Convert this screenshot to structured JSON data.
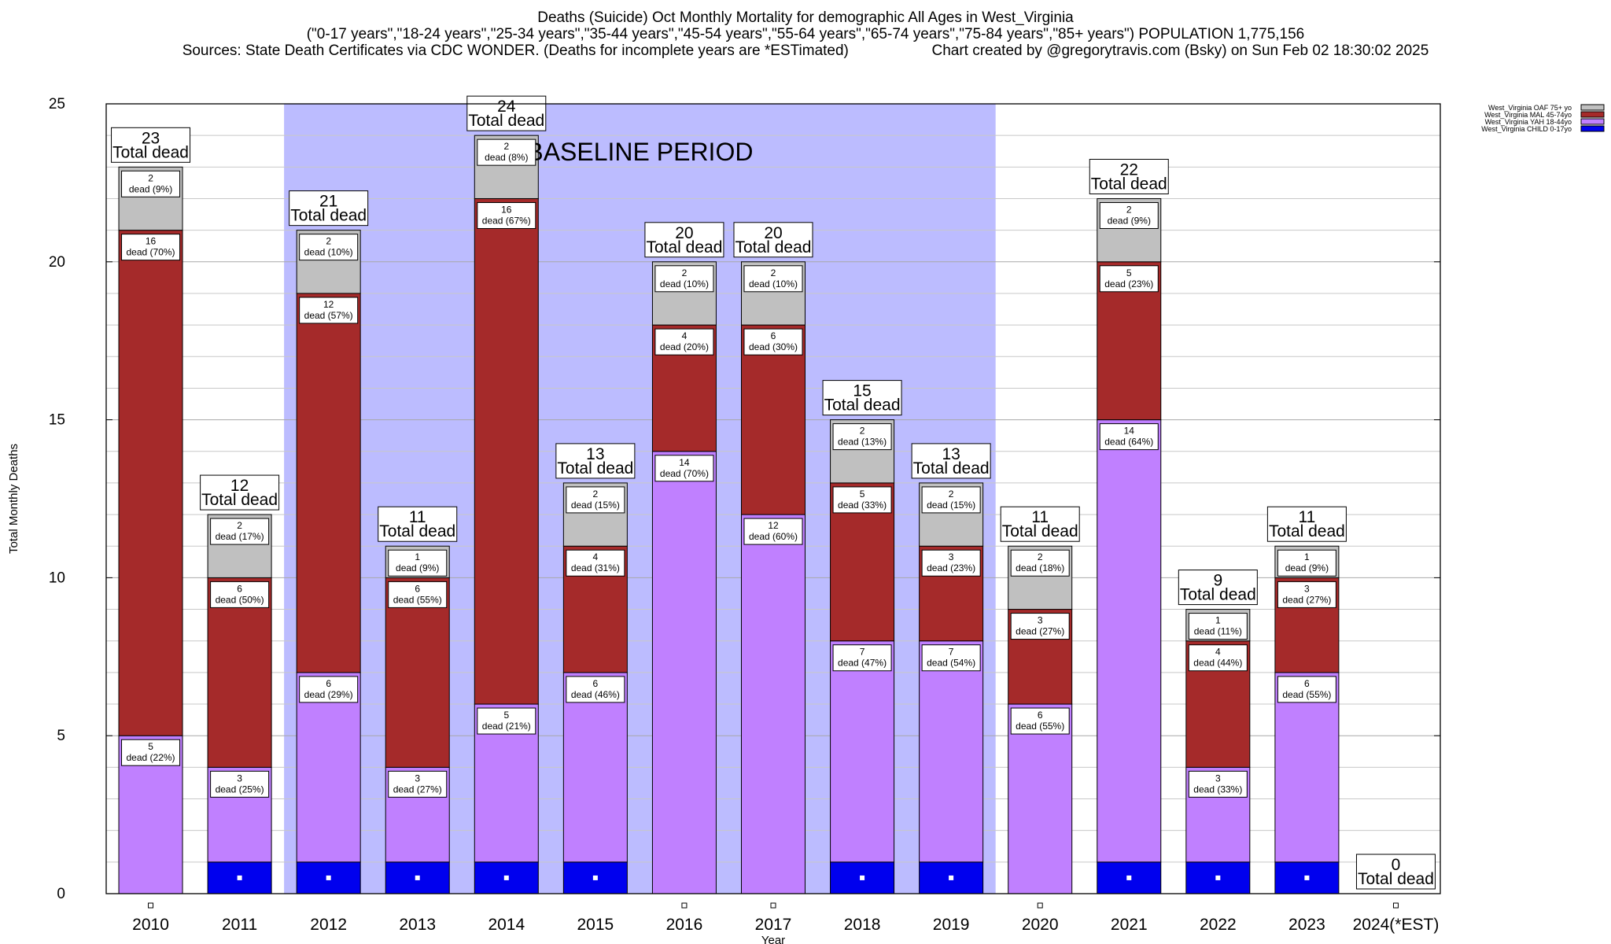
{
  "header": {
    "title": "Deaths (Suicide) Oct Monthly Mortality for demographic All Ages in West_Virginia",
    "age_groups": "(\"0-17 years\",\"18-24 years\",\"25-34 years\",\"35-44 years\",\"45-54 years\",\"55-64 years\",\"65-74 years\",\"75-84 years\",\"85+ years\") POPULATION 1,775,156",
    "sources": "Sources: State Death Certificates via CDC WONDER. (Deaths for incomplete years are *ESTimated)",
    "credit": "Chart created by @gregorytravis.com (Bsky) on Sun Feb 02 18:30:02 2025"
  },
  "chart_data": {
    "type": "bar",
    "stacked": true,
    "xlabel": "Year",
    "ylabel": "Total Monthly Deaths",
    "ylim": [
      0,
      25
    ],
    "yticks": [
      0,
      5,
      10,
      15,
      20,
      25
    ],
    "grid": true,
    "legend_position": "top-right",
    "categories": [
      "2010",
      "2011",
      "2012",
      "2013",
      "2014",
      "2015",
      "2016",
      "2017",
      "2018",
      "2019",
      "2020",
      "2021",
      "2022",
      "2023",
      "2024(*EST)"
    ],
    "baseline": {
      "label": "BASELINE PERIOD",
      "from": "2012",
      "to": "2019"
    },
    "total_label": "Total dead",
    "segment_label_word": "dead",
    "series": [
      {
        "name": "West_Virginia CHILD 0-17yo",
        "color": "#0000ee",
        "values": [
          0,
          1,
          1,
          1,
          1,
          1,
          0,
          0,
          1,
          1,
          0,
          1,
          1,
          1,
          0
        ]
      },
      {
        "name": "West_Virginia YAH 18-44yo",
        "color": "#c080ff",
        "values": [
          5,
          3,
          6,
          3,
          5,
          6,
          14,
          12,
          7,
          7,
          6,
          14,
          3,
          6,
          0
        ],
        "pct": [
          "22%",
          "25%",
          "29%",
          "27%",
          "21%",
          "46%",
          "70%",
          "60%",
          "47%",
          "54%",
          "55%",
          "64%",
          "33%",
          "55%",
          ""
        ]
      },
      {
        "name": "West_Virginia MAL 45-74yo",
        "color": "#a52a2a",
        "values": [
          16,
          6,
          12,
          6,
          16,
          4,
          4,
          6,
          5,
          3,
          3,
          5,
          4,
          3,
          0
        ],
        "pct": [
          "70%",
          "50%",
          "57%",
          "55%",
          "67%",
          "31%",
          "20%",
          "30%",
          "33%",
          "23%",
          "27%",
          "23%",
          "44%",
          "27%",
          ""
        ]
      },
      {
        "name": "West_Virginia OAF 75+ yo",
        "color": "#c0c0c0",
        "values": [
          2,
          2,
          2,
          1,
          2,
          2,
          2,
          2,
          2,
          2,
          2,
          2,
          1,
          1,
          0
        ],
        "pct": [
          "9%",
          "17%",
          "10%",
          "9%",
          "8%",
          "15%",
          "10%",
          "10%",
          "13%",
          "15%",
          "18%",
          "9%",
          "11%",
          "9%",
          ""
        ]
      }
    ],
    "totals": [
      23,
      12,
      21,
      11,
      24,
      13,
      20,
      20,
      15,
      13,
      11,
      22,
      9,
      11,
      0
    ]
  }
}
